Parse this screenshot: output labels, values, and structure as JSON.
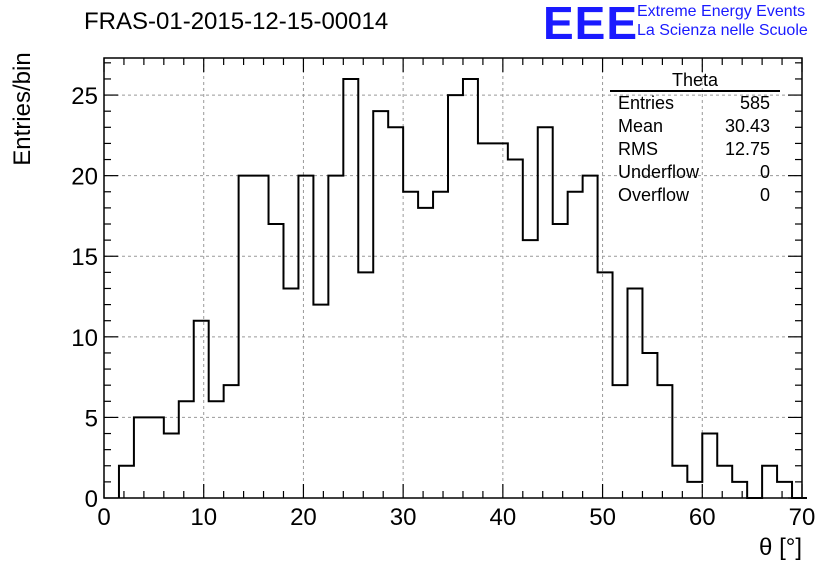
{
  "header": {
    "title": "FRAS-01-2015-12-15-00014",
    "logo_text": "EEE",
    "logo_line1": "Extreme Energy Events",
    "logo_line2": "La Scienza nelle Scuole",
    "logo_color": "#1a1aff"
  },
  "stats_box": {
    "title": "Theta",
    "rows": [
      {
        "label": "Entries",
        "value": "585"
      },
      {
        "label": "Mean",
        "value": "30.43"
      },
      {
        "label": "RMS",
        "value": "12.75"
      },
      {
        "label": "Underflow",
        "value": "0"
      },
      {
        "label": "Overflow",
        "value": "0"
      }
    ]
  },
  "chart_data": {
    "type": "bar",
    "title": "FRAS-01-2015-12-15-00014",
    "xlabel": "θ [°]",
    "ylabel": "Entries/bin",
    "xlim": [
      0,
      70
    ],
    "ylim": [
      0,
      27.3
    ],
    "x_ticks": [
      0,
      10,
      20,
      30,
      40,
      50,
      60,
      70
    ],
    "y_ticks": [
      0,
      5,
      10,
      15,
      20,
      25
    ],
    "bin_width": 1.5,
    "bin_start": 1.5,
    "values": [
      2,
      5,
      5,
      4,
      6,
      11,
      6,
      7,
      20,
      20,
      17,
      13,
      20,
      12,
      20,
      26,
      14,
      24,
      23,
      19,
      18,
      19,
      25,
      26,
      22,
      22,
      21,
      16,
      23,
      17,
      19,
      20,
      14,
      7,
      13,
      9,
      7,
      2,
      1,
      4,
      2,
      1,
      0,
      2,
      1,
      0
    ],
    "grid": true,
    "legend": "top-right"
  }
}
